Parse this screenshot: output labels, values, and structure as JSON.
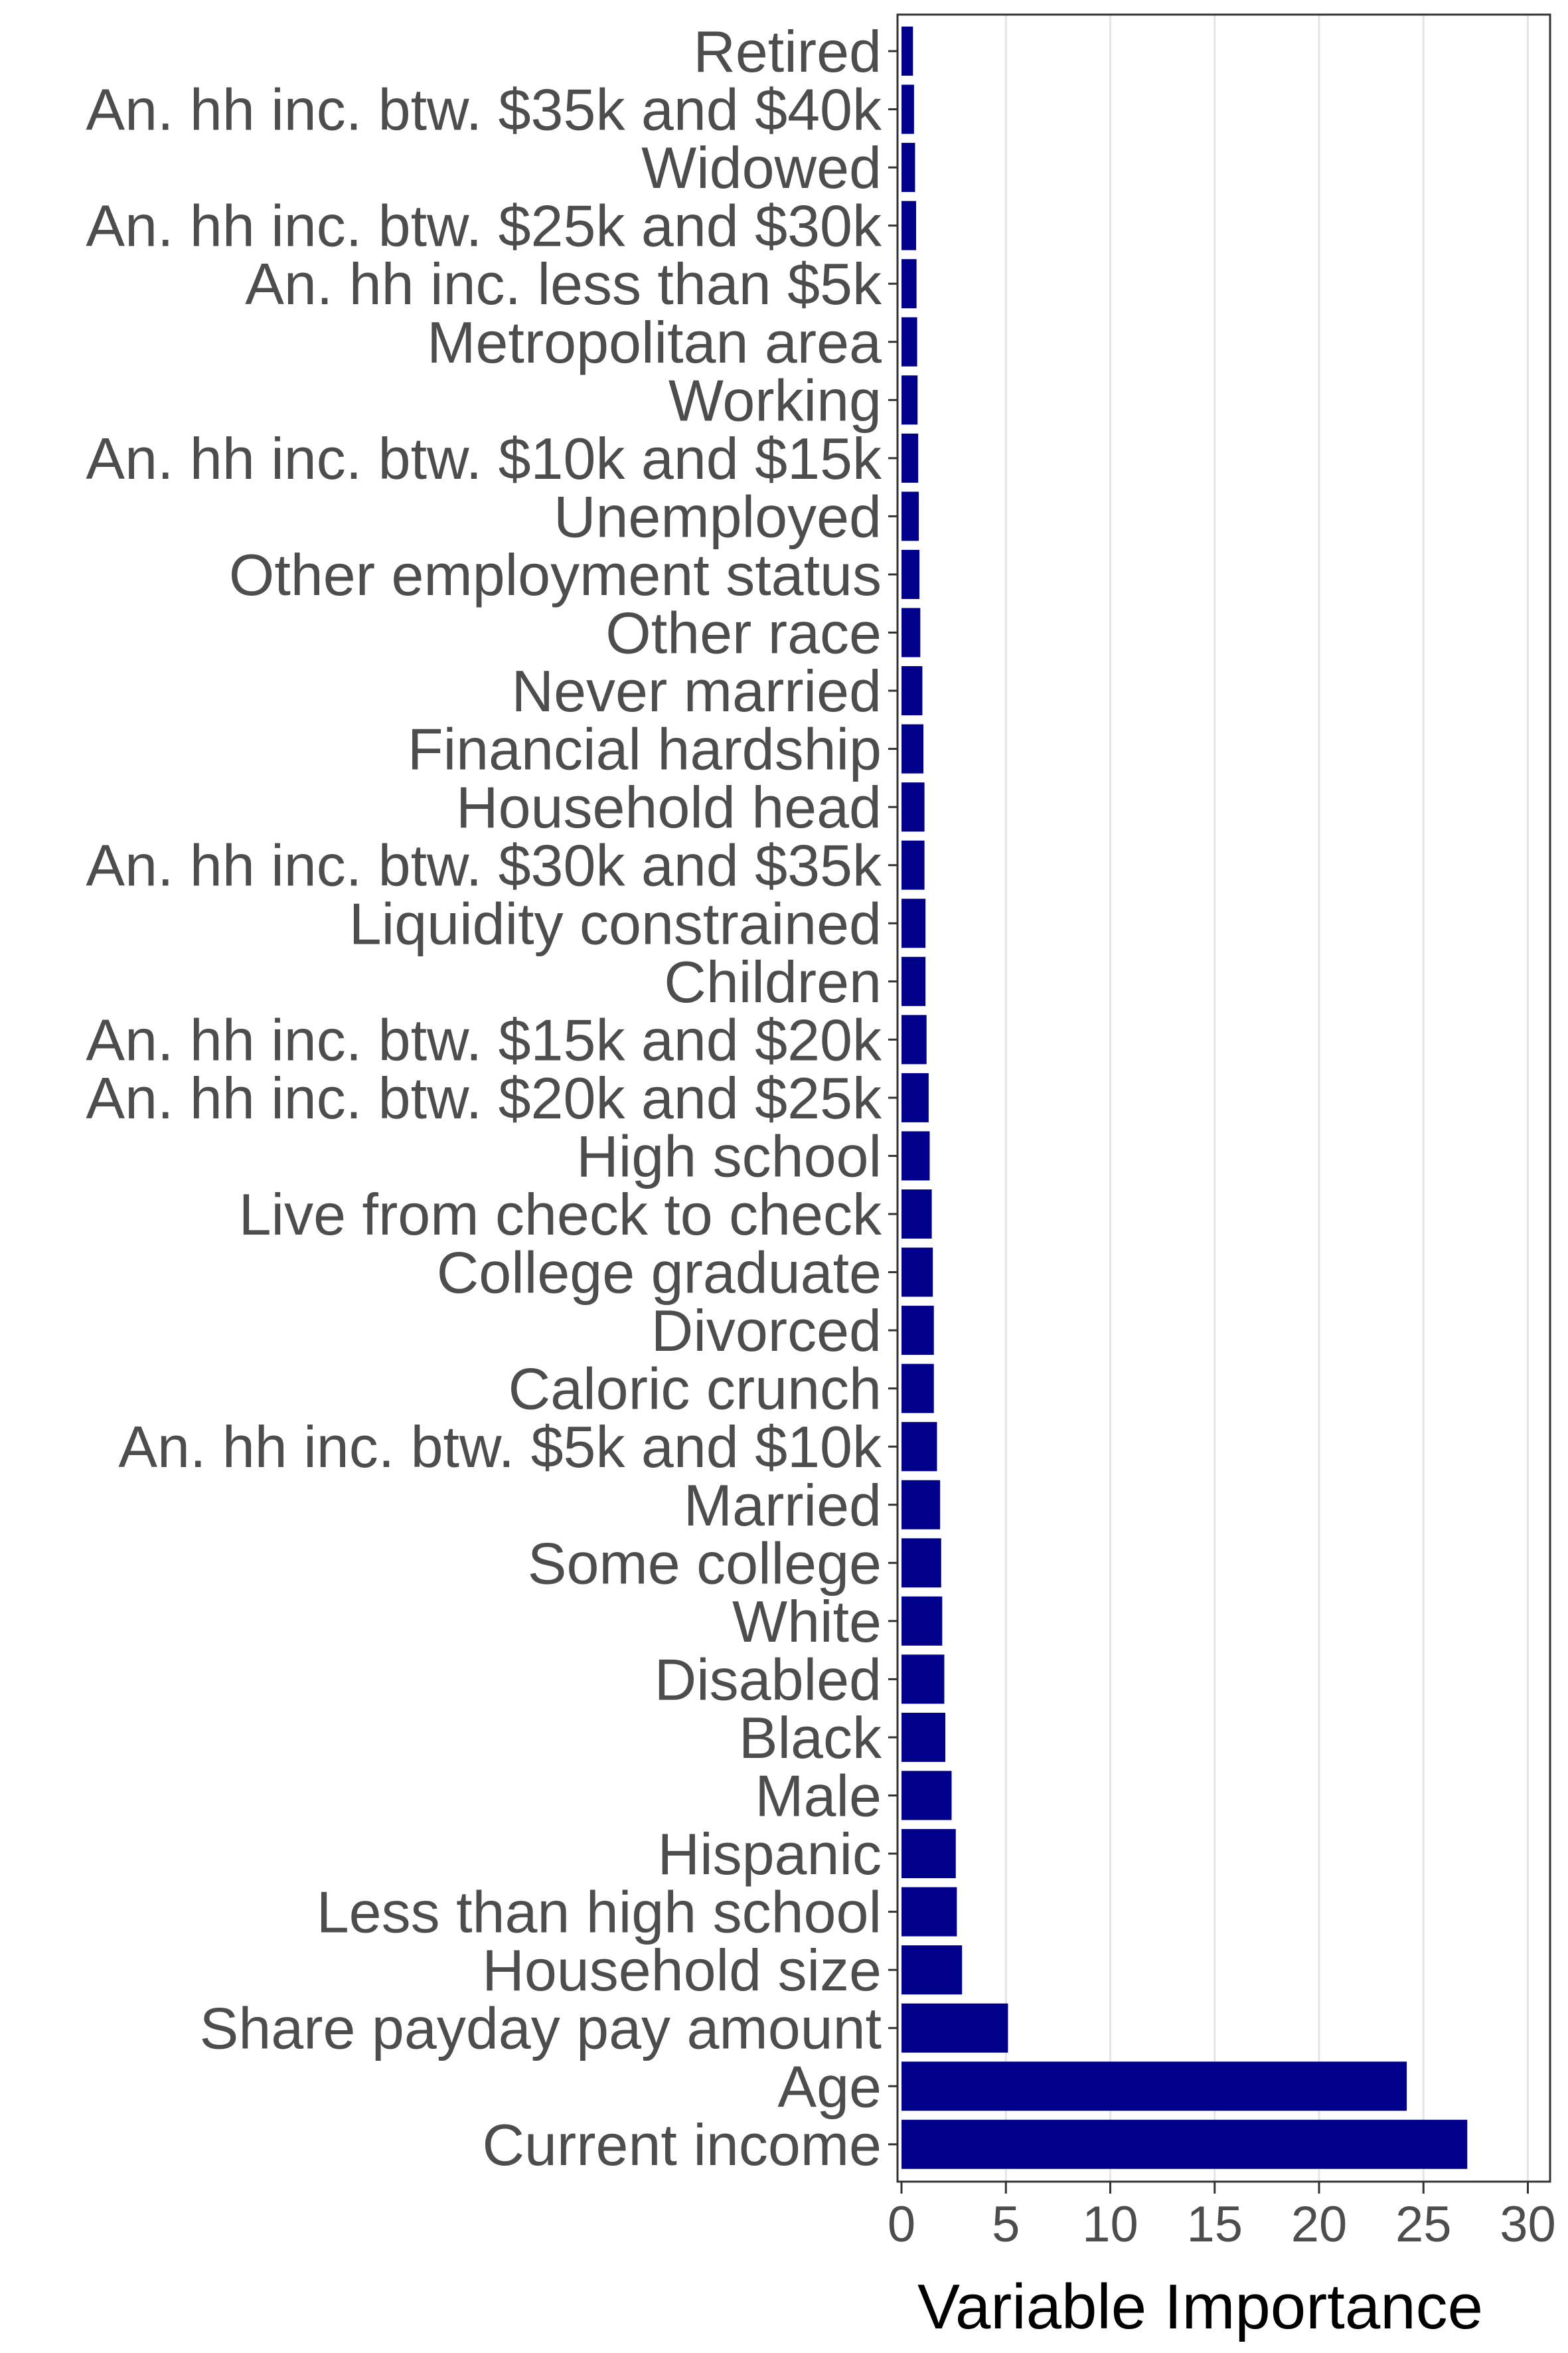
{
  "chart_data": {
    "type": "bar",
    "orientation": "horizontal",
    "xlabel": "Variable Importance",
    "ylabel": "",
    "xlim": [
      0,
      30
    ],
    "x_ticks": [
      0,
      5,
      10,
      15,
      20,
      25,
      30
    ],
    "grid": "vertical",
    "legend": "none",
    "bar_color": "#00008b",
    "categories": [
      "Retired",
      "An. hh inc. btw. $35k and $40k",
      "Widowed",
      "An. hh inc. btw. $25k and $30k",
      "An. hh inc. less than $5k",
      "Metropolitan area",
      "Working",
      "An. hh inc. btw. $10k and $15k",
      "Unemployed",
      "Other employment status",
      "Other race",
      "Never married",
      "Financial hardship",
      "Household head",
      "An. hh inc. btw. $30k and $35k",
      "Liquidity constrained",
      "Children",
      "An. hh inc. btw. $15k and $20k",
      "An. hh inc. btw. $20k and $25k",
      "High school",
      "Live from check to check",
      "College graduate",
      "Divorced",
      "Caloric crunch",
      "An. hh inc. btw. $5k and $10k",
      "Married",
      "Some college",
      "White",
      "Disabled",
      "Black",
      "Male",
      "Hispanic",
      "Less than high school",
      "Household size",
      "Share payday pay amount",
      "Age",
      "Current income"
    ],
    "values": [
      0.55,
      0.6,
      0.65,
      0.7,
      0.72,
      0.75,
      0.77,
      0.8,
      0.83,
      0.86,
      0.9,
      1.0,
      1.05,
      1.1,
      1.1,
      1.15,
      1.15,
      1.2,
      1.3,
      1.35,
      1.45,
      1.5,
      1.55,
      1.55,
      1.7,
      1.85,
      1.9,
      1.95,
      2.05,
      2.1,
      2.4,
      2.6,
      2.65,
      2.9,
      5.1,
      24.2,
      27.1
    ]
  }
}
